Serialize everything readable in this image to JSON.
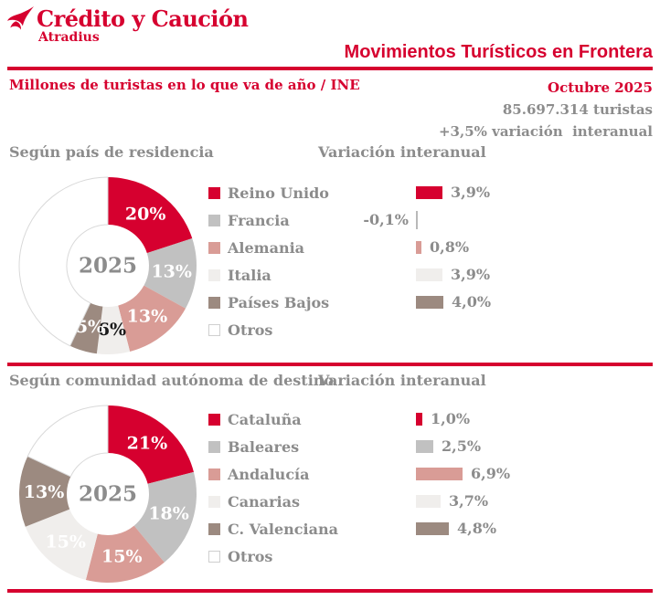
{
  "colors": {
    "red": "#d6002f",
    "gray": "#c1c1c1",
    "salmon": "#d99c96",
    "light_gray": "#f0eeec",
    "taupe": "#9c8a80",
    "white": "#ffffff",
    "text_gray": "#8c8c8c",
    "dark_label": "#1a1a1a",
    "otros_border": "#cfcfcf"
  },
  "header": {
    "logo_title": "Crédito y Caución",
    "logo_subtitle": "Atradius",
    "title": "Movimientos Turísticos en Frontera"
  },
  "subheader": {
    "left": "Millones de turistas en lo que va de año / INE",
    "date": "Octubre 2025",
    "total": "85.697.314 turistas",
    "variation": "+3,5% variación  interanual"
  },
  "sections": [
    {
      "heading": "Según país de residencia",
      "bars_heading": "Variación interanual",
      "center_label": "2025"
    },
    {
      "heading": "Según comunidad autónoma de destino",
      "bars_heading": "Variación interanual",
      "center_label": "2025"
    }
  ],
  "chart_data": [
    {
      "type": "pie",
      "title": "Según país de residencia",
      "subtitle": "2025",
      "labels": [
        "Reino Unido",
        "Francia",
        "Alemania",
        "Italia",
        "Países Bajos",
        "Otros"
      ],
      "values": [
        20,
        13,
        13,
        6,
        5,
        43
      ],
      "display_labels": [
        "20%",
        "13%",
        "13%",
        "6%",
        "5%",
        ""
      ],
      "colors": [
        "#d6002f",
        "#c1c1c1",
        "#d99c96",
        "#f0eeec",
        "#9c8a80",
        "#ffffff"
      ],
      "label_colors": [
        "#ffffff",
        "#ffffff",
        "#ffffff",
        "#1a1a1a",
        "#ffffff",
        ""
      ],
      "legend_position": "right",
      "donut": true
    },
    {
      "type": "bar",
      "title": "Variación interanual",
      "categories": [
        "Reino Unido",
        "Francia",
        "Alemania",
        "Italia",
        "Países Bajos"
      ],
      "values": [
        3.9,
        -0.1,
        0.8,
        3.9,
        4.0
      ],
      "value_labels": [
        "3,9%",
        "-0,1%",
        "0,8%",
        "3,9%",
        "4,0%"
      ],
      "colors": [
        "#d6002f",
        "#c1c1c1",
        "#d99c96",
        "#f0eeec",
        "#9c8a80"
      ],
      "orientation": "horizontal",
      "xlim": [
        -0.5,
        5
      ]
    },
    {
      "type": "pie",
      "title": "Según comunidad autónoma de destino",
      "subtitle": "2025",
      "labels": [
        "Cataluña",
        "Baleares",
        "Andalucía",
        "Canarias",
        "C. Valenciana",
        "Otros"
      ],
      "values": [
        21,
        18,
        15,
        15,
        13,
        18
      ],
      "display_labels": [
        "21%",
        "18%",
        "15%",
        "15%",
        "13%",
        ""
      ],
      "colors": [
        "#d6002f",
        "#c1c1c1",
        "#d99c96",
        "#f0eeec",
        "#9c8a80",
        "#ffffff"
      ],
      "label_colors": [
        "#ffffff",
        "#ffffff",
        "#ffffff",
        "#ffffff",
        "#ffffff",
        ""
      ],
      "legend_position": "right",
      "donut": true
    },
    {
      "type": "bar",
      "title": "Variación interanual",
      "categories": [
        "Cataluña",
        "Baleares",
        "Andalucía",
        "Canarias",
        "C. Valenciana"
      ],
      "values": [
        1.0,
        2.5,
        6.9,
        3.7,
        4.8
      ],
      "value_labels": [
        "1,0%",
        "2,5%",
        "6,9%",
        "3,7%",
        "4,8%"
      ],
      "colors": [
        "#d6002f",
        "#c1c1c1",
        "#d99c96",
        "#f0eeec",
        "#9c8a80"
      ],
      "orientation": "horizontal",
      "xlim": [
        0,
        8
      ]
    }
  ]
}
